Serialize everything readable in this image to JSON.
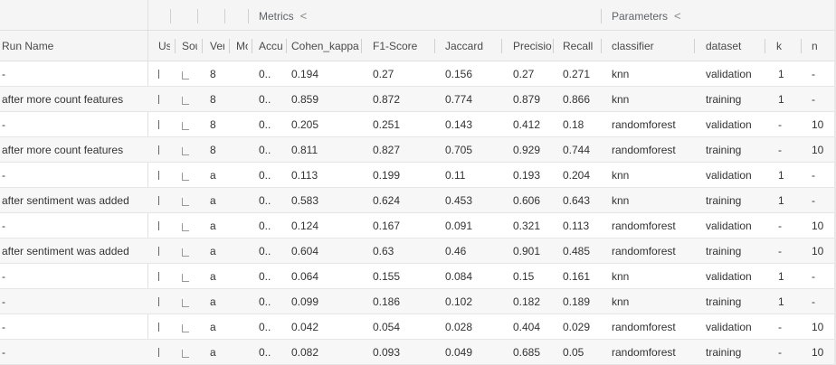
{
  "group_header": {
    "metrics_label": "Metrics",
    "parameters_label": "Parameters",
    "collapse_glyph": "<"
  },
  "columns": {
    "run_name": "Run Name",
    "user": "Us",
    "source": "Sou",
    "version": "Ver",
    "models": "Mo",
    "accuracy": "Accu",
    "cohen_kappa": "Cohen_kappa",
    "f1_score": "F1-Score",
    "jaccard": "Jaccard",
    "precision": "Precisio",
    "recall": "Recall",
    "classifier": "classifier",
    "dataset": "dataset",
    "k": "k",
    "n": "n"
  },
  "rows": [
    {
      "run_name": "-",
      "user": "l",
      "version": "8",
      "accuracy": "0..",
      "cohen_kappa": "0.194",
      "f1_score": "0.27",
      "jaccard": "0.156",
      "precision": "0.27",
      "recall": "0.271",
      "classifier": "knn",
      "dataset": "validation",
      "k": "1",
      "n": "-"
    },
    {
      "run_name": "after more count features",
      "user": "l",
      "version": "8",
      "accuracy": "0..",
      "cohen_kappa": "0.859",
      "f1_score": "0.872",
      "jaccard": "0.774",
      "precision": "0.879",
      "recall": "0.866",
      "classifier": "knn",
      "dataset": "training",
      "k": "1",
      "n": "-"
    },
    {
      "run_name": "-",
      "user": "l",
      "version": "8",
      "accuracy": "0..",
      "cohen_kappa": "0.205",
      "f1_score": "0.251",
      "jaccard": "0.143",
      "precision": "0.412",
      "recall": "0.18",
      "classifier": "randomforest",
      "dataset": "validation",
      "k": "-",
      "n": "10"
    },
    {
      "run_name": "after more count features",
      "user": "l",
      "version": "8",
      "accuracy": "0..",
      "cohen_kappa": "0.811",
      "f1_score": "0.827",
      "jaccard": "0.705",
      "precision": "0.929",
      "recall": "0.744",
      "classifier": "randomforest",
      "dataset": "training",
      "k": "-",
      "n": "10"
    },
    {
      "run_name": "-",
      "user": "l",
      "version": "a",
      "accuracy": "0..",
      "cohen_kappa": "0.113",
      "f1_score": "0.199",
      "jaccard": "0.11",
      "precision": "0.193",
      "recall": "0.204",
      "classifier": "knn",
      "dataset": "validation",
      "k": "1",
      "n": "-"
    },
    {
      "run_name": "after sentiment was added",
      "user": "l",
      "version": "a",
      "accuracy": "0..",
      "cohen_kappa": "0.583",
      "f1_score": "0.624",
      "jaccard": "0.453",
      "precision": "0.606",
      "recall": "0.643",
      "classifier": "knn",
      "dataset": "training",
      "k": "1",
      "n": "-"
    },
    {
      "run_name": "-",
      "user": "l",
      "version": "a",
      "accuracy": "0..",
      "cohen_kappa": "0.124",
      "f1_score": "0.167",
      "jaccard": "0.091",
      "precision": "0.321",
      "recall": "0.113",
      "classifier": "randomforest",
      "dataset": "validation",
      "k": "-",
      "n": "10"
    },
    {
      "run_name": "after sentiment was added",
      "user": "l",
      "version": "a",
      "accuracy": "0..",
      "cohen_kappa": "0.604",
      "f1_score": "0.63",
      "jaccard": "0.46",
      "precision": "0.901",
      "recall": "0.485",
      "classifier": "randomforest",
      "dataset": "training",
      "k": "-",
      "n": "10"
    },
    {
      "run_name": "-",
      "user": "l",
      "version": "a",
      "accuracy": "0..",
      "cohen_kappa": "0.064",
      "f1_score": "0.155",
      "jaccard": "0.084",
      "precision": "0.15",
      "recall": "0.161",
      "classifier": "knn",
      "dataset": "validation",
      "k": "1",
      "n": "-"
    },
    {
      "run_name": "-",
      "user": "l",
      "version": "a",
      "accuracy": "0..",
      "cohen_kappa": "0.099",
      "f1_score": "0.186",
      "jaccard": "0.102",
      "precision": "0.182",
      "recall": "0.189",
      "classifier": "knn",
      "dataset": "training",
      "k": "1",
      "n": "-"
    },
    {
      "run_name": "-",
      "user": "l",
      "version": "a",
      "accuracy": "0..",
      "cohen_kappa": "0.042",
      "f1_score": "0.054",
      "jaccard": "0.028",
      "precision": "0.404",
      "recall": "0.029",
      "classifier": "randomforest",
      "dataset": "validation",
      "k": "-",
      "n": "10"
    },
    {
      "run_name": "-",
      "user": "l",
      "version": "a",
      "accuracy": "0..",
      "cohen_kappa": "0.082",
      "f1_score": "0.093",
      "jaccard": "0.049",
      "precision": "0.685",
      "recall": "0.05",
      "classifier": "randomforest",
      "dataset": "training",
      "k": "-",
      "n": "10"
    }
  ],
  "colors": {
    "header_bg": "#f5f5f5",
    "alt_row_bg": "#f7f7f7",
    "border": "#e0e0e0",
    "text": "#333333"
  }
}
